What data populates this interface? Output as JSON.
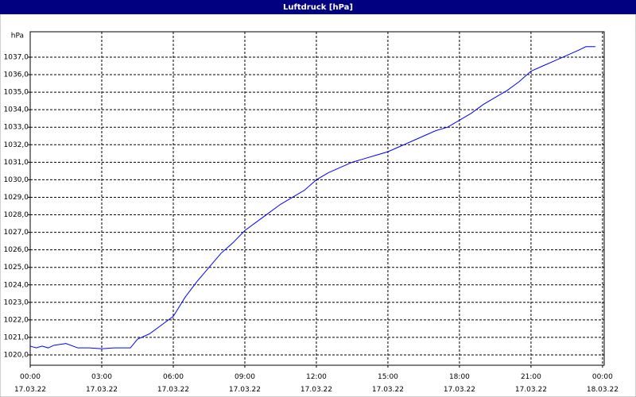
{
  "chart_data": {
    "type": "line",
    "title": "Luftdruck [hPa]",
    "y_label": "hPa",
    "x": [
      0,
      0.25,
      0.5,
      0.75,
      1,
      1.5,
      2,
      2.5,
      3,
      3.5,
      4,
      4.2,
      4.5,
      5,
      5.5,
      6,
      6.5,
      7,
      7.5,
      8,
      8.5,
      9,
      9.5,
      10,
      10.5,
      11,
      11.5,
      12,
      12.5,
      13,
      13.5,
      14,
      14.5,
      15,
      15.5,
      16,
      16.5,
      17,
      17.5,
      18,
      18.5,
      19,
      19.5,
      20,
      20.5,
      21,
      21.5,
      22,
      22.5,
      23,
      23.3,
      23.7
    ],
    "series": [
      {
        "name": "Luftdruck",
        "color": "#0000ff",
        "values": [
          1020.5,
          1020.4,
          1020.5,
          1020.4,
          1020.55,
          1020.65,
          1020.4,
          1020.4,
          1020.35,
          1020.4,
          1020.4,
          1020.4,
          1020.9,
          1021.2,
          1021.7,
          1022.2,
          1023.3,
          1024.2,
          1025.0,
          1025.8,
          1026.4,
          1027.1,
          1027.6,
          1028.1,
          1028.6,
          1029.0,
          1029.4,
          1030.0,
          1030.4,
          1030.7,
          1031.0,
          1031.2,
          1031.4,
          1031.6,
          1031.9,
          1032.2,
          1032.5,
          1032.8,
          1033.0,
          1033.4,
          1033.8,
          1034.3,
          1034.7,
          1035.1,
          1035.6,
          1036.2,
          1036.5,
          1036.8,
          1037.1,
          1037.4,
          1037.6,
          1037.6
        ]
      }
    ],
    "xlim": [
      0,
      24.07
    ],
    "ylim": [
      1019.41,
      1038.45
    ],
    "xticks": [
      {
        "value": 0,
        "label": "00:00\n17.03.22"
      },
      {
        "value": 3,
        "label": "03:00\n17.03.22"
      },
      {
        "value": 6,
        "label": "06:00\n17.03.22"
      },
      {
        "value": 9,
        "label": "09:00\n17.03.22"
      },
      {
        "value": 12,
        "label": "12:00\n17.03.22"
      },
      {
        "value": 15,
        "label": "15:00\n17.03.22"
      },
      {
        "value": 18,
        "label": "18:00\n17.03.22"
      },
      {
        "value": 21,
        "label": "21:00\n17.03.22"
      },
      {
        "value": 24,
        "label": "00:00\n18.03.22"
      }
    ],
    "yticks": [
      {
        "value": 1020,
        "label": "1020,0"
      },
      {
        "value": 1021,
        "label": "1021,0"
      },
      {
        "value": 1022,
        "label": "1022,0"
      },
      {
        "value": 1023,
        "label": "1023,0"
      },
      {
        "value": 1024,
        "label": "1024,0"
      },
      {
        "value": 1025,
        "label": "1025,0"
      },
      {
        "value": 1026,
        "label": "1026,0"
      },
      {
        "value": 1027,
        "label": "1027,0"
      },
      {
        "value": 1028,
        "label": "1028,0"
      },
      {
        "value": 1029,
        "label": "1029,0"
      },
      {
        "value": 1030,
        "label": "1030,0"
      },
      {
        "value": 1031,
        "label": "1031,0"
      },
      {
        "value": 1032,
        "label": "1032,0"
      },
      {
        "value": 1033,
        "label": "1033,0"
      },
      {
        "value": 1034,
        "label": "1034,0"
      },
      {
        "value": 1035,
        "label": "1035,0"
      },
      {
        "value": 1036,
        "label": "1036,0"
      },
      {
        "value": 1037,
        "label": "1037,0"
      }
    ],
    "grid": true
  }
}
